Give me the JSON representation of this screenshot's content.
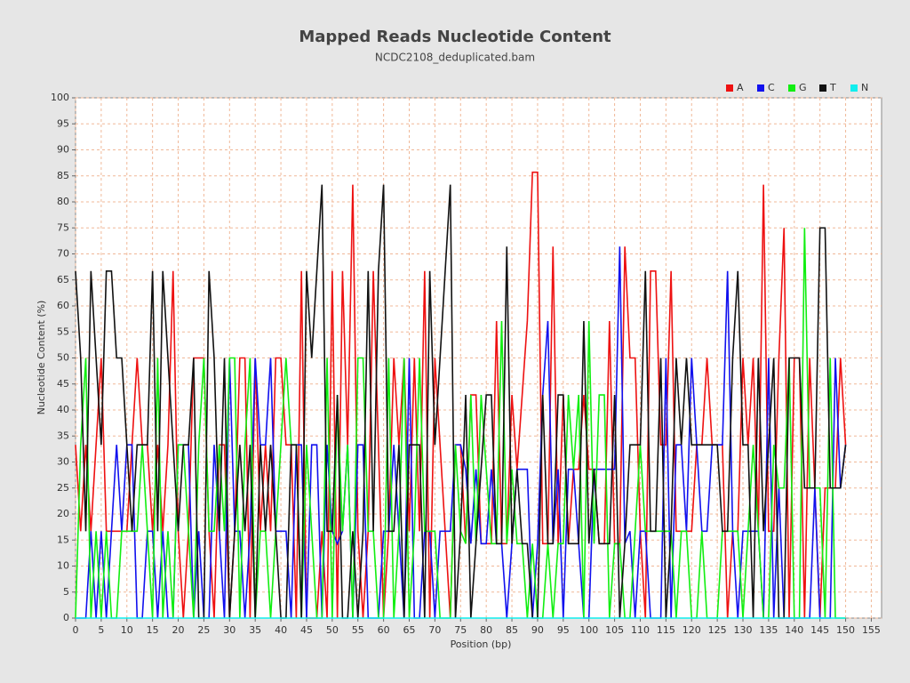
{
  "chart_data": {
    "type": "line",
    "title": "Mapped Reads Nucleotide Content",
    "subtitle": "NCDC2108_deduplicated.bam",
    "x_label": "Position (bp)",
    "y_label": "Nucleotide Content (%)",
    "x": [
      0,
      1,
      2,
      3,
      4,
      5,
      6,
      7,
      8,
      9,
      10,
      11,
      12,
      13,
      14,
      15,
      16,
      17,
      18,
      19,
      20,
      21,
      22,
      23,
      24,
      25,
      26,
      27,
      28,
      29,
      30,
      31,
      32,
      33,
      34,
      35,
      36,
      37,
      38,
      39,
      40,
      41,
      42,
      43,
      44,
      45,
      46,
      47,
      48,
      49,
      50,
      51,
      52,
      53,
      54,
      55,
      56,
      57,
      58,
      59,
      60,
      61,
      62,
      63,
      64,
      65,
      66,
      67,
      68,
      69,
      70,
      71,
      72,
      73,
      74,
      75,
      76,
      77,
      78,
      79,
      80,
      81,
      82,
      83,
      84,
      85,
      86,
      87,
      88,
      89,
      90,
      91,
      92,
      93,
      94,
      95,
      96,
      97,
      98,
      99,
      100,
      101,
      102,
      103,
      104,
      105,
      106,
      107,
      108,
      109,
      110,
      111,
      112,
      113,
      114,
      115,
      116,
      117,
      118,
      119,
      120,
      121,
      122,
      123,
      124,
      125,
      126,
      127,
      128,
      129,
      130,
      131,
      132,
      133,
      134,
      135,
      136,
      137,
      138,
      139,
      140,
      141,
      142,
      143,
      144,
      145,
      146,
      147,
      148,
      149,
      150
    ],
    "series": [
      {
        "name": "A",
        "color": "#ee1111",
        "values": [
          33.3,
          16.7,
          33.3,
          16.7,
          33.3,
          50,
          16.7,
          16.7,
          16.7,
          16.7,
          16.7,
          33.3,
          50,
          33.3,
          33.3,
          16.7,
          33.3,
          16.7,
          33.3,
          66.7,
          16.7,
          0,
          16.7,
          50,
          50,
          50,
          16.7,
          0,
          33.3,
          33.3,
          0,
          16.7,
          50,
          50,
          0,
          50,
          16.7,
          33.3,
          16.7,
          50,
          50,
          33.3,
          33.3,
          0,
          66.7,
          0,
          0,
          0,
          16.7,
          0,
          66.7,
          0,
          66.7,
          33.3,
          83.3,
          16.7,
          0,
          16.7,
          66.7,
          33.3,
          0,
          16.7,
          50,
          33.3,
          50,
          16.7,
          50,
          16.7,
          66.7,
          0,
          50,
          33.3,
          16.7,
          0,
          33.3,
          33.3,
          14.3,
          42.9,
          42.9,
          14.3,
          14.3,
          14.3,
          57.1,
          14.3,
          14.3,
          42.9,
          28.6,
          42.9,
          57.1,
          85.7,
          85.7,
          14.3,
          14.3,
          71.4,
          14.3,
          42.9,
          14.3,
          28.6,
          28.6,
          42.9,
          28.6,
          28.6,
          14.3,
          14.3,
          57.1,
          14.3,
          14.3,
          71.4,
          50,
          50,
          16.7,
          0,
          66.7,
          66.7,
          33.3,
          33.3,
          66.7,
          16.7,
          16.7,
          16.7,
          16.7,
          33.3,
          33.3,
          50,
          33.3,
          33.3,
          33.3,
          0,
          16.7,
          16.7,
          50,
          33.3,
          50,
          16.7,
          83.3,
          16.7,
          16.7,
          50,
          75,
          0,
          50,
          50,
          0,
          50,
          25,
          0,
          25,
          25,
          25,
          50,
          33.3
        ]
      },
      {
        "name": "C",
        "color": "#1111ee",
        "values": [
          0,
          0,
          0,
          16.7,
          0,
          16.7,
          0,
          16.7,
          33.3,
          16.7,
          33.3,
          33.3,
          0,
          0,
          16.7,
          16.7,
          0,
          16.7,
          0,
          0,
          33.3,
          33.3,
          33.3,
          0,
          16.7,
          0,
          0,
          33.3,
          16.7,
          0,
          50,
          16.7,
          16.7,
          0,
          16.7,
          50,
          33.3,
          33.3,
          50,
          16.7,
          16.7,
          16.7,
          0,
          33.3,
          33.3,
          0,
          33.3,
          33.3,
          0,
          33.3,
          16.7,
          14.3,
          16.7,
          33.3,
          0,
          33.3,
          33.3,
          0,
          0,
          0,
          16.7,
          16.7,
          33.3,
          16.7,
          0,
          50,
          0,
          0,
          16.7,
          16.7,
          0,
          16.7,
          16.7,
          16.7,
          33.3,
          33.3,
          28.6,
          14.3,
          28.6,
          14.3,
          14.3,
          28.6,
          14.3,
          14.3,
          0,
          14.3,
          28.6,
          28.6,
          28.6,
          0,
          14.3,
          42.9,
          57.1,
          14.3,
          28.6,
          0,
          28.6,
          28.6,
          14.3,
          0,
          0,
          28.6,
          28.6,
          28.6,
          28.6,
          28.6,
          71.4,
          14.3,
          16.7,
          0,
          16.7,
          16.7,
          0,
          0,
          0,
          50,
          0,
          33.3,
          33.3,
          16.7,
          50,
          33.3,
          16.7,
          16.7,
          33.3,
          33.3,
          33.3,
          66.7,
          16.7,
          0,
          16.7,
          16.7,
          16.7,
          16.7,
          0,
          50,
          0,
          25,
          0,
          0,
          0,
          0,
          0,
          0,
          25,
          0,
          0,
          0,
          50,
          25,
          33.3
        ]
      },
      {
        "name": "G",
        "color": "#11ee11",
        "values": [
          0,
          33.3,
          50,
          0,
          16.7,
          0,
          16.7,
          0,
          0,
          16.7,
          16.7,
          16.7,
          16.7,
          33.3,
          16.7,
          0,
          50,
          0,
          16.7,
          0,
          33.3,
          33.3,
          16.7,
          0,
          33.3,
          50,
          16.7,
          16.7,
          33.3,
          16.7,
          50,
          50,
          0,
          33.3,
          50,
          0,
          16.7,
          16.7,
          0,
          16.7,
          33.3,
          50,
          33.3,
          33.3,
          0,
          33.3,
          16.7,
          0,
          0,
          50,
          0,
          42.9,
          16.7,
          33.3,
          0,
          50,
          50,
          16.7,
          16.7,
          0,
          0,
          50,
          0,
          16.7,
          50,
          0,
          16.7,
          50,
          16.7,
          16.7,
          16.7,
          0,
          0,
          0,
          33.3,
          16.7,
          14.3,
          42.9,
          14.3,
          42.9,
          28.6,
          14.3,
          14.3,
          57.1,
          14.3,
          28.6,
          14.3,
          14.3,
          0,
          14.3,
          0,
          0,
          14.3,
          0,
          14.3,
          14.3,
          42.9,
          28.6,
          42.9,
          0,
          57.1,
          14.3,
          42.9,
          42.9,
          0,
          14.3,
          14.3,
          0,
          0,
          16.7,
          33.3,
          16.7,
          16.7,
          16.7,
          16.7,
          16.7,
          16.7,
          0,
          16.7,
          16.7,
          0,
          0,
          16.7,
          0,
          0,
          0,
          16.7,
          16.7,
          16.7,
          16.7,
          0,
          16.7,
          33.3,
          16.7,
          0,
          0,
          33.3,
          25,
          25,
          50,
          0,
          0,
          75,
          25,
          25,
          25,
          0,
          50,
          0,
          0,
          0
        ]
      },
      {
        "name": "T",
        "color": "#111111",
        "values": [
          66.7,
          50,
          16.7,
          66.7,
          50,
          33.3,
          66.7,
          66.7,
          50,
          50,
          33.3,
          16.7,
          33.3,
          33.3,
          33.3,
          66.7,
          16.7,
          66.7,
          50,
          33.3,
          16.7,
          33.3,
          33.3,
          50,
          0,
          0,
          66.7,
          50,
          16.7,
          50,
          0,
          16.7,
          33.3,
          16.7,
          33.3,
          0,
          33.3,
          16.7,
          33.3,
          16.7,
          0,
          0,
          33.3,
          33.3,
          0,
          66.7,
          50,
          66.7,
          83.3,
          16.7,
          16.7,
          42.9,
          0,
          0,
          16.7,
          0,
          16.7,
          66.7,
          16.7,
          66.7,
          83.3,
          16.7,
          16.7,
          33.3,
          0,
          33.3,
          33.3,
          33.3,
          0,
          66.7,
          33.3,
          50,
          66.7,
          83.3,
          0,
          16.7,
          42.9,
          0,
          14.3,
          28.6,
          42.9,
          42.9,
          14.3,
          14.3,
          71.4,
          14.3,
          28.6,
          14.3,
          14.3,
          0,
          0,
          42.9,
          14.3,
          14.3,
          42.9,
          42.9,
          14.3,
          14.3,
          14.3,
          57.1,
          14.3,
          28.6,
          14.3,
          14.3,
          14.3,
          42.9,
          0,
          14.3,
          33.3,
          33.3,
          33.3,
          66.7,
          16.7,
          16.7,
          50,
          0,
          16.7,
          50,
          33.3,
          50,
          33.3,
          33.3,
          33.3,
          33.3,
          33.3,
          33.3,
          16.7,
          16.7,
          50,
          66.7,
          33.3,
          33.3,
          0,
          50,
          16.7,
          33.3,
          50,
          0,
          0,
          50,
          50,
          50,
          25,
          25,
          25,
          75,
          75,
          25,
          25,
          25,
          33.3
        ]
      },
      {
        "name": "N",
        "color": "#11eeee",
        "values": [
          0,
          0,
          0,
          0,
          0,
          0,
          0,
          0,
          0,
          0,
          0,
          0,
          0,
          0,
          0,
          0,
          0,
          0,
          0,
          0,
          0,
          0,
          0,
          0,
          0,
          0,
          0,
          0,
          0,
          0,
          0,
          0,
          0,
          0,
          0,
          0,
          0,
          0,
          0,
          0,
          0,
          0,
          0,
          0,
          0,
          0,
          0,
          0,
          0,
          0,
          0,
          0,
          0,
          0,
          0,
          0,
          0,
          0,
          0,
          0,
          0,
          0,
          0,
          0,
          0,
          0,
          0,
          0,
          0,
          0,
          0,
          0,
          0,
          0,
          0,
          0,
          0,
          0,
          0,
          0,
          0,
          0,
          0,
          0,
          0,
          0,
          0,
          0,
          0,
          0,
          0,
          0,
          0,
          0,
          0,
          0,
          0,
          0,
          0,
          0,
          0,
          0,
          0,
          0,
          0,
          0,
          0,
          0,
          0,
          0,
          0,
          0,
          0,
          0,
          0,
          0,
          0,
          0,
          0,
          0,
          0,
          0,
          0,
          0,
          0,
          0,
          0,
          0,
          0,
          0,
          0,
          0,
          0,
          0,
          0,
          0,
          0,
          0,
          0,
          0,
          0,
          0,
          0,
          0,
          0,
          0,
          0,
          0,
          0,
          0,
          0
        ]
      }
    ],
    "xlim": [
      0,
      157
    ],
    "xticks": [
      0,
      5,
      10,
      15,
      20,
      25,
      30,
      35,
      40,
      45,
      50,
      55,
      60,
      65,
      70,
      75,
      80,
      85,
      90,
      95,
      100,
      105,
      110,
      115,
      120,
      125,
      130,
      135,
      140,
      145,
      150,
      155
    ],
    "ylim": [
      0,
      100
    ],
    "yticks": [
      0,
      5,
      10,
      15,
      20,
      25,
      30,
      35,
      40,
      45,
      50,
      55,
      60,
      65,
      70,
      75,
      80,
      85,
      90,
      95,
      100
    ],
    "grid": true,
    "legend": "top-right"
  }
}
